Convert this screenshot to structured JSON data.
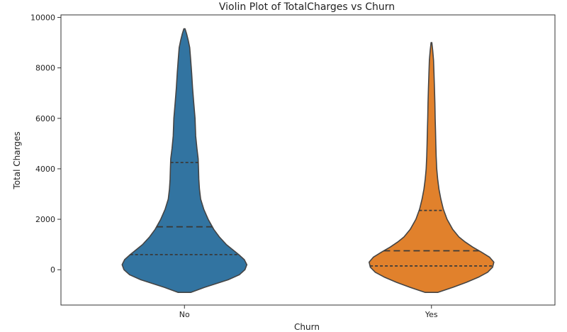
{
  "chart_data": {
    "type": "violin",
    "title": "Violin Plot of TotalCharges vs Churn",
    "xlabel": "Churn",
    "ylabel": "Total Charges",
    "categories": [
      "No",
      "Yes"
    ],
    "ylim": [
      -1400,
      10100
    ],
    "yticks": [
      0,
      2000,
      4000,
      6000,
      8000,
      10000
    ],
    "grid": false,
    "legend": "none",
    "inner": "quartile",
    "series": [
      {
        "category": "No",
        "color": "#3274a1",
        "min": -900,
        "max": 9550,
        "quartiles": [
          600,
          1700,
          4250
        ],
        "profile": [
          [
            -900,
            0.1
          ],
          [
            -700,
            0.32
          ],
          [
            -400,
            0.7
          ],
          [
            -200,
            0.88
          ],
          [
            0,
            0.97
          ],
          [
            200,
            1.0
          ],
          [
            400,
            0.96
          ],
          [
            600,
            0.87
          ],
          [
            800,
            0.77
          ],
          [
            1000,
            0.67
          ],
          [
            1300,
            0.56
          ],
          [
            1600,
            0.47
          ],
          [
            2000,
            0.38
          ],
          [
            2400,
            0.31
          ],
          [
            2800,
            0.26
          ],
          [
            3200,
            0.24
          ],
          [
            3600,
            0.23
          ],
          [
            4000,
            0.225
          ],
          [
            4400,
            0.22
          ],
          [
            4800,
            0.2
          ],
          [
            5300,
            0.18
          ],
          [
            6000,
            0.17
          ],
          [
            6600,
            0.15
          ],
          [
            7200,
            0.13
          ],
          [
            7800,
            0.115
          ],
          [
            8300,
            0.1
          ],
          [
            8800,
            0.085
          ],
          [
            9100,
            0.06
          ],
          [
            9350,
            0.035
          ],
          [
            9550,
            0.01
          ]
        ]
      },
      {
        "category": "Yes",
        "color": "#e1812c",
        "min": -900,
        "max": 9000,
        "quartiles": [
          150,
          750,
          2350
        ],
        "profile": [
          [
            -900,
            0.1
          ],
          [
            -700,
            0.34
          ],
          [
            -500,
            0.56
          ],
          [
            -300,
            0.75
          ],
          [
            -100,
            0.9
          ],
          [
            100,
            0.98
          ],
          [
            300,
            1.0
          ],
          [
            500,
            0.93
          ],
          [
            700,
            0.8
          ],
          [
            900,
            0.66
          ],
          [
            1100,
            0.54
          ],
          [
            1300,
            0.44
          ],
          [
            1600,
            0.34
          ],
          [
            2000,
            0.25
          ],
          [
            2400,
            0.19
          ],
          [
            2800,
            0.15
          ],
          [
            3200,
            0.12
          ],
          [
            3600,
            0.1
          ],
          [
            4000,
            0.085
          ],
          [
            4500,
            0.075
          ],
          [
            5000,
            0.07
          ],
          [
            5500,
            0.065
          ],
          [
            6000,
            0.06
          ],
          [
            6600,
            0.055
          ],
          [
            7200,
            0.048
          ],
          [
            7800,
            0.04
          ],
          [
            8300,
            0.033
          ],
          [
            8700,
            0.02
          ],
          [
            9000,
            0.006
          ]
        ]
      }
    ]
  }
}
